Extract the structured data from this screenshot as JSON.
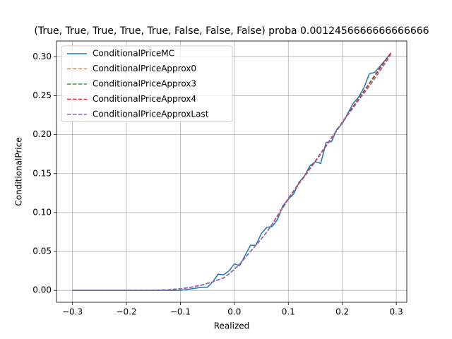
{
  "chart_data": {
    "type": "line",
    "title": "(True, True, True, True, True, False, False, False) proba 0.0012456666666666666",
    "xlabel": "Realized",
    "ylabel": "ConditionalPrice",
    "x": [
      -0.3,
      -0.29,
      -0.28,
      -0.27,
      -0.26,
      -0.25,
      -0.24,
      -0.23,
      -0.22,
      -0.21,
      -0.2,
      -0.19,
      -0.18,
      -0.17,
      -0.16,
      -0.15,
      -0.14,
      -0.13,
      -0.12,
      -0.11,
      -0.1,
      -0.09,
      -0.08,
      -0.07,
      -0.06,
      -0.05,
      -0.04,
      -0.03,
      -0.02,
      -0.01,
      0,
      0.01,
      0.02,
      0.03,
      0.04,
      0.05,
      0.06,
      0.07,
      0.08,
      0.09,
      0.1,
      0.11,
      0.12,
      0.13,
      0.14,
      0.15,
      0.16,
      0.17,
      0.18,
      0.19,
      0.2,
      0.21,
      0.22,
      0.23,
      0.24,
      0.25,
      0.26,
      0.27,
      0.28,
      0.29
    ],
    "series": [
      {
        "name": "ConditionalPriceMC",
        "color": "#1f77b4",
        "style": "solid",
        "values": [
          0,
          0,
          0,
          0,
          0,
          0,
          0,
          0,
          0,
          0,
          0,
          0,
          0,
          0,
          0,
          0,
          0,
          0,
          0,
          0,
          0,
          0.001,
          0.002,
          0.003,
          0.004,
          0.004,
          0.011,
          0.021,
          0.02,
          0.025,
          0.034,
          0.032,
          0.045,
          0.058,
          0.058,
          0.073,
          0.081,
          0.082,
          0.091,
          0.109,
          0.117,
          0.124,
          0.139,
          0.147,
          0.16,
          0.165,
          0.163,
          0.19,
          0.191,
          0.207,
          0.214,
          0.227,
          0.24,
          0.248,
          0.26,
          0.278,
          0.28,
          0.288,
          0.296,
          0.305
        ]
      },
      {
        "name": "ConditionalPriceApprox0",
        "color": "#ff7f0e",
        "style": "dashed",
        "values": [
          0,
          0,
          0,
          0,
          0,
          0,
          0,
          0,
          0,
          0,
          0,
          0,
          0,
          0,
          0,
          0.0002,
          0.0004,
          0.0007,
          0.001,
          0.0015,
          0.002,
          0.003,
          0.004,
          0.0055,
          0.007,
          0.009,
          0.011,
          0.0135,
          0.016,
          0.021,
          0.027,
          0.034,
          0.042,
          0.05,
          0.058,
          0.066,
          0.075,
          0.085,
          0.095,
          0.106,
          0.117,
          0.127,
          0.137,
          0.146,
          0.156,
          0.165,
          0.175,
          0.185,
          0.195,
          0.205,
          0.215,
          0.225,
          0.234,
          0.244,
          0.253,
          0.262,
          0.272,
          0.282,
          0.292,
          0.303
        ]
      },
      {
        "name": "ConditionalPriceApprox3",
        "color": "#2ca02c",
        "style": "dashed",
        "values": [
          0,
          0,
          0,
          0,
          0,
          0,
          0,
          0,
          0,
          0,
          0,
          0,
          0,
          0,
          0,
          0.0002,
          0.0004,
          0.0007,
          0.001,
          0.0015,
          0.002,
          0.003,
          0.004,
          0.0055,
          0.007,
          0.009,
          0.011,
          0.0135,
          0.016,
          0.021,
          0.027,
          0.034,
          0.042,
          0.05,
          0.058,
          0.066,
          0.075,
          0.085,
          0.096,
          0.107,
          0.118,
          0.128,
          0.138,
          0.147,
          0.157,
          0.166,
          0.176,
          0.186,
          0.196,
          0.206,
          0.216,
          0.226,
          0.236,
          0.246,
          0.255,
          0.265,
          0.275,
          0.285,
          0.295,
          0.305
        ]
      },
      {
        "name": "ConditionalPriceApprox4",
        "color": "#d62728",
        "style": "dashed",
        "values": [
          0,
          0,
          0,
          0,
          0,
          0,
          0,
          0,
          0,
          0,
          0,
          0,
          0,
          0,
          0,
          0.0002,
          0.0004,
          0.0007,
          0.001,
          0.0015,
          0.002,
          0.003,
          0.004,
          0.0055,
          0.007,
          0.009,
          0.011,
          0.0135,
          0.016,
          0.021,
          0.027,
          0.034,
          0.042,
          0.05,
          0.058,
          0.066,
          0.075,
          0.085,
          0.096,
          0.107,
          0.118,
          0.128,
          0.138,
          0.147,
          0.157,
          0.166,
          0.176,
          0.186,
          0.196,
          0.206,
          0.216,
          0.226,
          0.236,
          0.246,
          0.256,
          0.266,
          0.276,
          0.286,
          0.295,
          0.305
        ]
      },
      {
        "name": "ConditionalPriceApproxLast",
        "color": "#9467bd",
        "style": "dashed",
        "values": [
          0,
          0,
          0,
          0,
          0,
          0,
          0,
          0,
          0,
          0,
          0,
          0,
          0,
          0,
          0,
          0.0002,
          0.0004,
          0.0007,
          0.001,
          0.0015,
          0.002,
          0.003,
          0.004,
          0.0055,
          0.007,
          0.009,
          0.011,
          0.0135,
          0.016,
          0.021,
          0.027,
          0.034,
          0.042,
          0.05,
          0.058,
          0.066,
          0.075,
          0.085,
          0.095,
          0.106,
          0.117,
          0.127,
          0.137,
          0.146,
          0.156,
          0.165,
          0.175,
          0.185,
          0.195,
          0.205,
          0.215,
          0.225,
          0.234,
          0.244,
          0.253,
          0.262,
          0.272,
          0.282,
          0.292,
          0.303
        ]
      }
    ],
    "xlim": [
      -0.3295,
      0.3195
    ],
    "xticks": [
      {
        "value": -0.3,
        "label": "−0.3"
      },
      {
        "value": -0.2,
        "label": "−0.2"
      },
      {
        "value": -0.1,
        "label": "−0.1"
      },
      {
        "value": 0,
        "label": "0.0"
      },
      {
        "value": 0.1,
        "label": "0.1"
      },
      {
        "value": 0.2,
        "label": "0.2"
      },
      {
        "value": 0.3,
        "label": "0.3"
      }
    ],
    "ylim": [
      -0.01525,
      0.32025
    ],
    "yticks": [
      {
        "value": 0,
        "label": "0.00"
      },
      {
        "value": 0.05,
        "label": "0.05"
      },
      {
        "value": 0.1,
        "label": "0.10"
      },
      {
        "value": 0.15,
        "label": "0.15"
      },
      {
        "value": 0.2,
        "label": "0.20"
      },
      {
        "value": 0.25,
        "label": "0.25"
      },
      {
        "value": 0.3,
        "label": "0.30"
      }
    ],
    "grid": true,
    "legend": "upper left"
  }
}
